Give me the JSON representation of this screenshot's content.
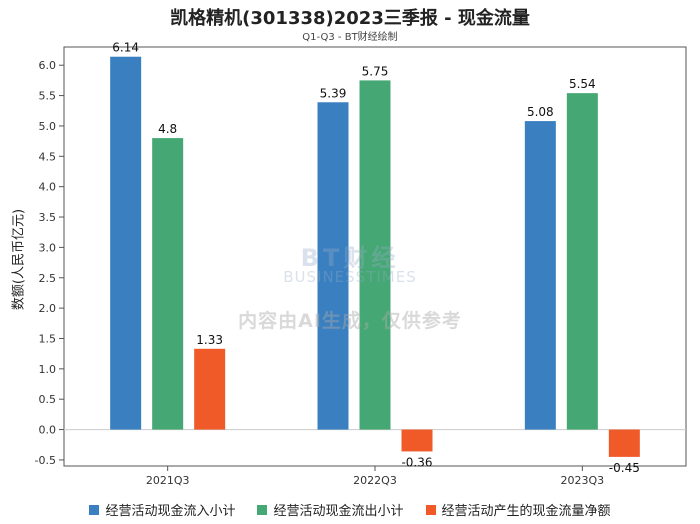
{
  "header": {
    "title": "凯格精机(301338)2023三季报 - 现金流量",
    "subtitle": "Q1-Q3 - BT财经绘制"
  },
  "watermark": {
    "brand": "BT财经",
    "brand_en": "BUSINESSTIMES",
    "notice": "内容由AI生成，仅供参考"
  },
  "chart_data": {
    "type": "bar",
    "title": "凯格精机(301338)2023三季报 - 现金流量",
    "subtitle": "Q1-Q3 - BT财经绘制",
    "xlabel": "",
    "ylabel": "数额(人民币亿元)",
    "categories": [
      "2021Q3",
      "2022Q3",
      "2023Q3"
    ],
    "ylim": [
      -0.6,
      6.3
    ],
    "yticks": [
      "-0.5",
      "0.0",
      "0.5",
      "1.0",
      "1.5",
      "2.0",
      "2.5",
      "3.0",
      "3.5",
      "4.0",
      "4.5",
      "5.0",
      "5.5",
      "6.0"
    ],
    "grid": false,
    "legend_position": "bottom",
    "series": [
      {
        "name": "经营活动现金流入小计",
        "color": "#3a80c0",
        "values": [
          6.14,
          5.39,
          5.08
        ],
        "labels": [
          "6.14",
          "5.39",
          "5.08"
        ]
      },
      {
        "name": "经营活动现金流出小计",
        "color": "#45a874",
        "values": [
          4.8,
          5.75,
          5.54
        ],
        "labels": [
          "4.8",
          "5.75",
          "5.54"
        ]
      },
      {
        "name": "经营活动产生的现金流量净额",
        "color": "#f05a28",
        "values": [
          1.33,
          -0.36,
          -0.45
        ],
        "labels": [
          "1.33",
          "-0.36",
          "-0.45"
        ]
      }
    ]
  }
}
